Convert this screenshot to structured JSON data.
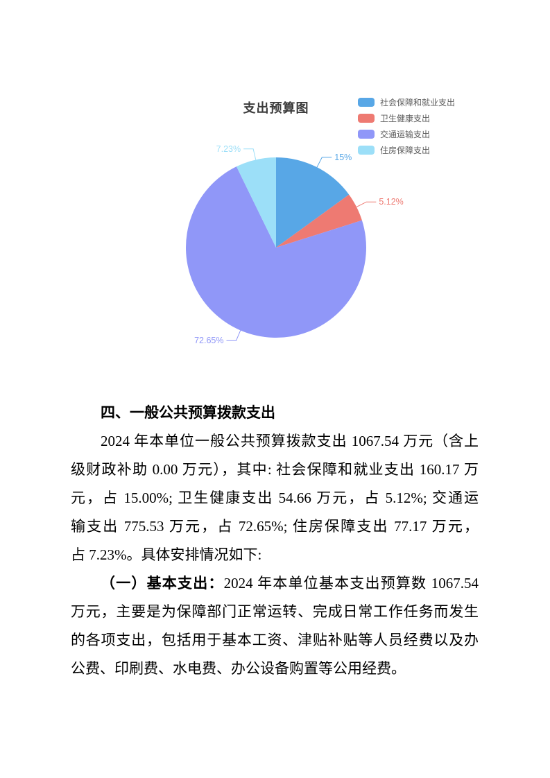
{
  "chart_data": {
    "type": "pie",
    "title": "支出预算图",
    "legend_position": "top-right",
    "unit": "percent",
    "slices": [
      {
        "label": "社会保障和就业支出",
        "value": 15.0,
        "pct_label": "15%",
        "color": "#58a7e6"
      },
      {
        "label": "卫生健康支出",
        "value": 5.12,
        "pct_label": "5.12%",
        "color": "#ee7a72"
      },
      {
        "label": "交通运输支出",
        "value": 72.65,
        "pct_label": "72.65%",
        "color": "#9097f8"
      },
      {
        "label": "住房保障支出",
        "value": 7.23,
        "pct_label": "7.23%",
        "color": "#9cdff8"
      }
    ]
  },
  "document": {
    "heading": "四、一般公共预算拨款支出",
    "para1_lines": [
      "2024 年本单位一般公共预算拨款支出 1067.54 万元（含上",
      "级财政补助 0.00 万元），其中: 社会保障和就业支出 160.17 万",
      "元，占 15.00%; 卫生健康支出 54.66 万元，占 5.12%; 交通运",
      "输支出 775.53 万元，占 72.65%; 住房保障支出 77.17 万元，",
      "占 7.23%。具体安排情况如下:"
    ],
    "para2_bold_lead": "（一）基本支出：",
    "para2_lines": [
      "2024 年本单位基本支出预算数 1067.54",
      "万元，主要是为保障部门正常运转、完成日常工作任务而发生",
      "的各项支出，包括用于基本工资、津贴补贴等人员经费以及办",
      "公费、印刷费、水电费、办公设备购置等公用经费。"
    ]
  }
}
